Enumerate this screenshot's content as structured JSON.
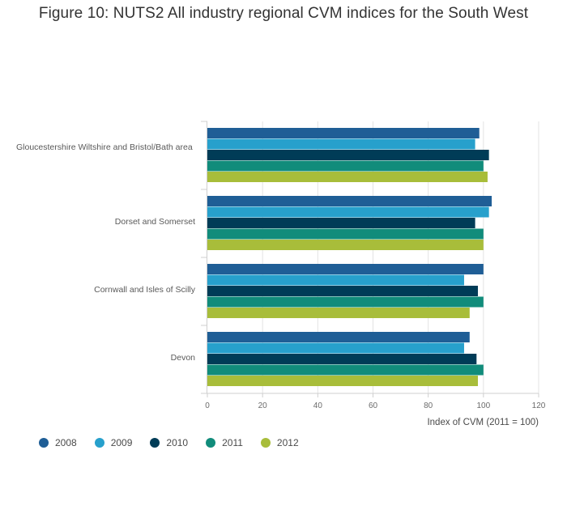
{
  "chart_data": {
    "type": "bar",
    "orientation": "horizontal",
    "title": "Figure 10: NUTS2 All industry regional CVM indices for the South West",
    "categories": [
      "Gloucestershire Wiltshire and Bristol/Bath area",
      "Dorset and Somerset",
      "Cornwall and Isles of Scilly",
      "Devon"
    ],
    "series": [
      {
        "name": "2008",
        "color": "#1f5e96",
        "values": [
          98.5,
          103.0,
          100.0,
          95.0
        ]
      },
      {
        "name": "2009",
        "color": "#27a0cc",
        "values": [
          97.0,
          102.0,
          93.0,
          93.0
        ]
      },
      {
        "name": "2010",
        "color": "#003c57",
        "values": [
          102.0,
          97.0,
          98.0,
          97.5
        ]
      },
      {
        "name": "2011",
        "color": "#118c7b",
        "values": [
          100.0,
          100.0,
          100.0,
          100.0
        ]
      },
      {
        "name": "2012",
        "color": "#a8bd3a",
        "values": [
          101.5,
          100.0,
          95.0,
          98.0
        ]
      }
    ],
    "xlabel": "Index of CVM (2011 = 100)",
    "ylabel": "",
    "xlim": [
      0,
      120
    ],
    "xticks": [
      0,
      20,
      40,
      60,
      80,
      100,
      120
    ],
    "grid": true,
    "legend_position": "bottom-left"
  }
}
